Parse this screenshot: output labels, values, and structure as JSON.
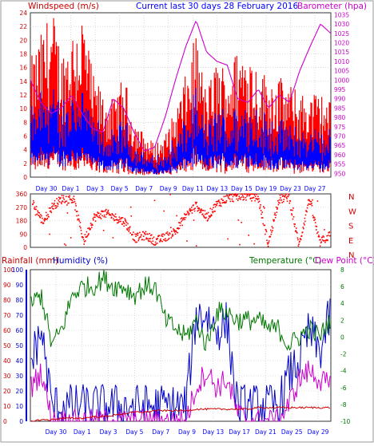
{
  "colors": {
    "windspeed": "#ff0000",
    "wind_avg": "#0000ff",
    "barometer": "#cc00cc",
    "direction": "#ff0000",
    "rainfall": "#cc0000",
    "humidity": "#0000cc",
    "temperature": "#007700",
    "dewpoint": "#cc00cc",
    "grid": "#c0c0c0",
    "frame": "#333333",
    "heading": "#0000ff"
  },
  "chart_data": [
    {
      "type": "line",
      "title": "Current last 30 days 28 February 2016",
      "ylabel": "Windspeed (m/s)",
      "y2label": "Barometer (hpa)",
      "ylim": [
        0,
        24
      ],
      "y2lim": [
        948,
        1036
      ],
      "yticks": [
        "0",
        "2",
        "4",
        "6",
        "8",
        "10",
        "12",
        "14",
        "16",
        "18",
        "20",
        "22",
        "24"
      ],
      "y2ticks": [
        "950",
        "955",
        "960",
        "965",
        "970",
        "975",
        "980",
        "985",
        "990",
        "995",
        "1000",
        "1005",
        "1010",
        "1015",
        "1020",
        "1025",
        "1030",
        "1035"
      ],
      "x": [
        0,
        1,
        2,
        3,
        4,
        5,
        6,
        7,
        8,
        9,
        10,
        11,
        12,
        13,
        14,
        15,
        16,
        17,
        18,
        19,
        20,
        21,
        22,
        23,
        24,
        25,
        26,
        27,
        28,
        29
      ],
      "xticks": [
        "Day 30",
        "Day 1",
        "Day 3",
        "Day 5",
        "Day 7",
        "Day 9",
        "Day 11",
        "Day 13",
        "Day 15",
        "Day 19",
        "Day 23",
        "Day 27"
      ],
      "grid": true,
      "series": [
        {
          "name": "Windspeed (m/s)",
          "values": [
            14,
            17,
            20,
            15,
            18,
            20,
            12,
            10,
            9,
            12,
            7,
            5,
            4,
            5,
            8,
            12,
            17,
            10,
            14,
            13,
            15,
            16,
            13,
            12,
            12,
            11,
            10,
            10,
            10,
            9
          ]
        },
        {
          "name": "Barometer (hpa)",
          "values": [
            1000,
            988,
            982,
            985,
            992,
            982,
            974,
            972,
            990,
            985,
            972,
            962,
            964,
            980,
            1000,
            1018,
            1032,
            1015,
            1010,
            1008,
            990,
            988,
            995,
            985,
            992,
            988,
            1005,
            1018,
            1030,
            1025
          ]
        }
      ]
    },
    {
      "type": "scatter",
      "yticks": [
        "0",
        "90",
        "180",
        "270",
        "360"
      ],
      "y2ticks": [
        "N",
        "W",
        "S",
        "E",
        "N"
      ],
      "ylim": [
        0,
        360
      ],
      "x": [
        0,
        1,
        2,
        3,
        4,
        5,
        6,
        7,
        8,
        9,
        10,
        11,
        12,
        13,
        14,
        15,
        16,
        17,
        18,
        19,
        20,
        21,
        22,
        23,
        24,
        25,
        26,
        27,
        28,
        29
      ],
      "values": [
        300,
        170,
        280,
        330,
        320,
        40,
        200,
        230,
        200,
        170,
        60,
        80,
        40,
        70,
        110,
        220,
        280,
        200,
        290,
        330,
        340,
        345,
        335,
        20,
        320,
        340,
        10,
        330,
        30,
        80
      ]
    },
    {
      "type": "line",
      "ylabel": "Rainfall (mm)",
      "ylabel2": "Humidity (%)",
      "y2label": "Temperature (°C)",
      "y2label2": "Dew Point (°C)",
      "ylim": [
        0,
        100
      ],
      "y2lim": [
        -10,
        8
      ],
      "yticks": [
        "0",
        "10",
        "20",
        "30",
        "40",
        "50",
        "60",
        "70",
        "80",
        "90",
        "100"
      ],
      "y2ticks": [
        "-10",
        "-8",
        "-6",
        "-4",
        "-2",
        "0",
        "2",
        "4",
        "6",
        "8"
      ],
      "x": [
        0,
        1,
        2,
        3,
        4,
        5,
        6,
        7,
        8,
        9,
        10,
        11,
        12,
        13,
        14,
        15,
        16,
        17,
        18,
        19,
        20,
        21,
        22,
        23,
        24,
        25,
        26,
        27,
        28,
        29
      ],
      "xticks": [
        "Day 30",
        "Day 1",
        "Day 3",
        "Day 5",
        "Day 7",
        "Day 9",
        "Day 13",
        "Day 17",
        "Day 21",
        "Day 25",
        "Day 29"
      ],
      "grid": true,
      "series": [
        {
          "name": "Humidity (%)",
          "values": [
            40,
            60,
            10,
            10,
            10,
            10,
            10,
            10,
            10,
            10,
            10,
            10,
            10,
            10,
            10,
            10,
            70,
            70,
            60,
            65,
            10,
            10,
            10,
            10,
            10,
            30,
            40,
            60,
            45,
            70
          ]
        },
        {
          "name": "Temperature (°C)",
          "values": [
            4,
            5,
            -1,
            1,
            5,
            6,
            6,
            7,
            6,
            6,
            5,
            6,
            6,
            2,
            1,
            0,
            2,
            -1,
            3,
            3,
            2,
            2,
            2,
            1,
            1,
            -1,
            0,
            1,
            0,
            2
          ]
        },
        {
          "name": "Dew Point (°C)",
          "values": [
            -6,
            -4,
            -10,
            -10,
            -10,
            -10,
            -10,
            -10,
            -10,
            -10,
            -10,
            -10,
            -10,
            -10,
            -10,
            -10,
            -6,
            -4,
            -6,
            -5,
            -9,
            -10,
            -10,
            -10,
            -10,
            -8,
            -5,
            -4,
            -5,
            -6
          ]
        },
        {
          "name": "Rainfall (mm)",
          "values": [
            0,
            1,
            1,
            2,
            2,
            2,
            3,
            3,
            4,
            5,
            6,
            6,
            7,
            7,
            7,
            7,
            8,
            8,
            8,
            8,
            8,
            8,
            9,
            9,
            9,
            9,
            9,
            9,
            9,
            9
          ]
        }
      ]
    }
  ]
}
